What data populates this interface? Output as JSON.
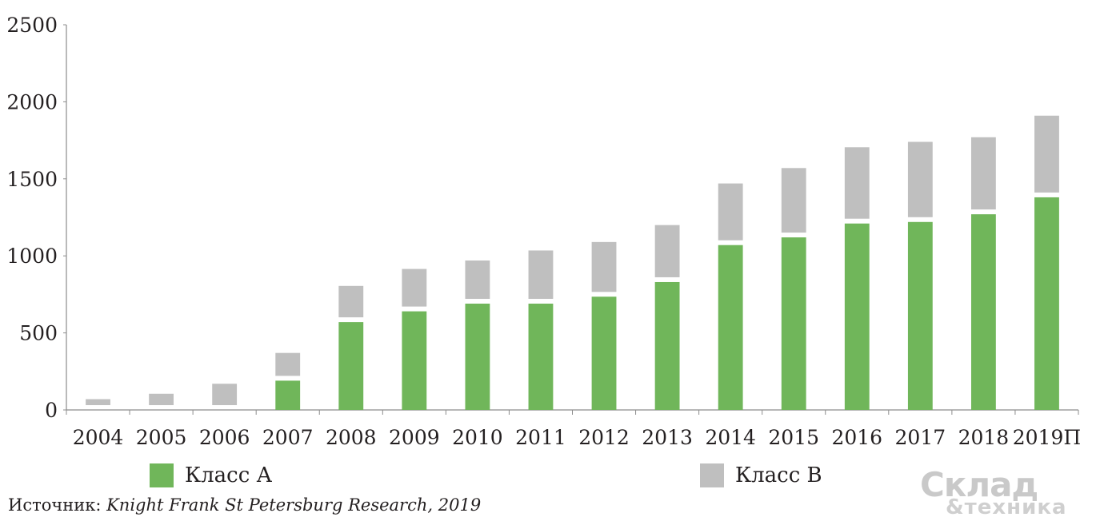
{
  "chart_data": {
    "type": "bar",
    "stacked": true,
    "categories": [
      "2004",
      "2005",
      "2006",
      "2007",
      "2008",
      "2009",
      "2010",
      "2011",
      "2012",
      "2013",
      "2014",
      "2015",
      "2016",
      "2017",
      "2018",
      "2019П"
    ],
    "series": [
      {
        "name": "Класс А",
        "color": "#70b65a",
        "values": [
          0,
          0,
          0,
          190,
          570,
          640,
          690,
          690,
          735,
          830,
          1070,
          1120,
          1210,
          1220,
          1270,
          1380
        ]
      },
      {
        "name": "Класс В",
        "color": "#bfbfbf",
        "values": [
          70,
          105,
          170,
          180,
          235,
          275,
          280,
          345,
          355,
          370,
          400,
          450,
          495,
          520,
          500,
          530
        ]
      }
    ],
    "ylim": [
      0,
      2500
    ],
    "yticks": [
      "0",
      "500",
      "1000",
      "1500",
      "2000",
      "2500"
    ],
    "title": "",
    "xlabel": "",
    "ylabel": "",
    "legend_position": "bottom",
    "grid": false
  },
  "source": {
    "label": "Источник:",
    "text": "Knight Frank St Petersburg Research, 2019"
  },
  "logo": {
    "line1": "Склад",
    "line2": "&техника"
  }
}
